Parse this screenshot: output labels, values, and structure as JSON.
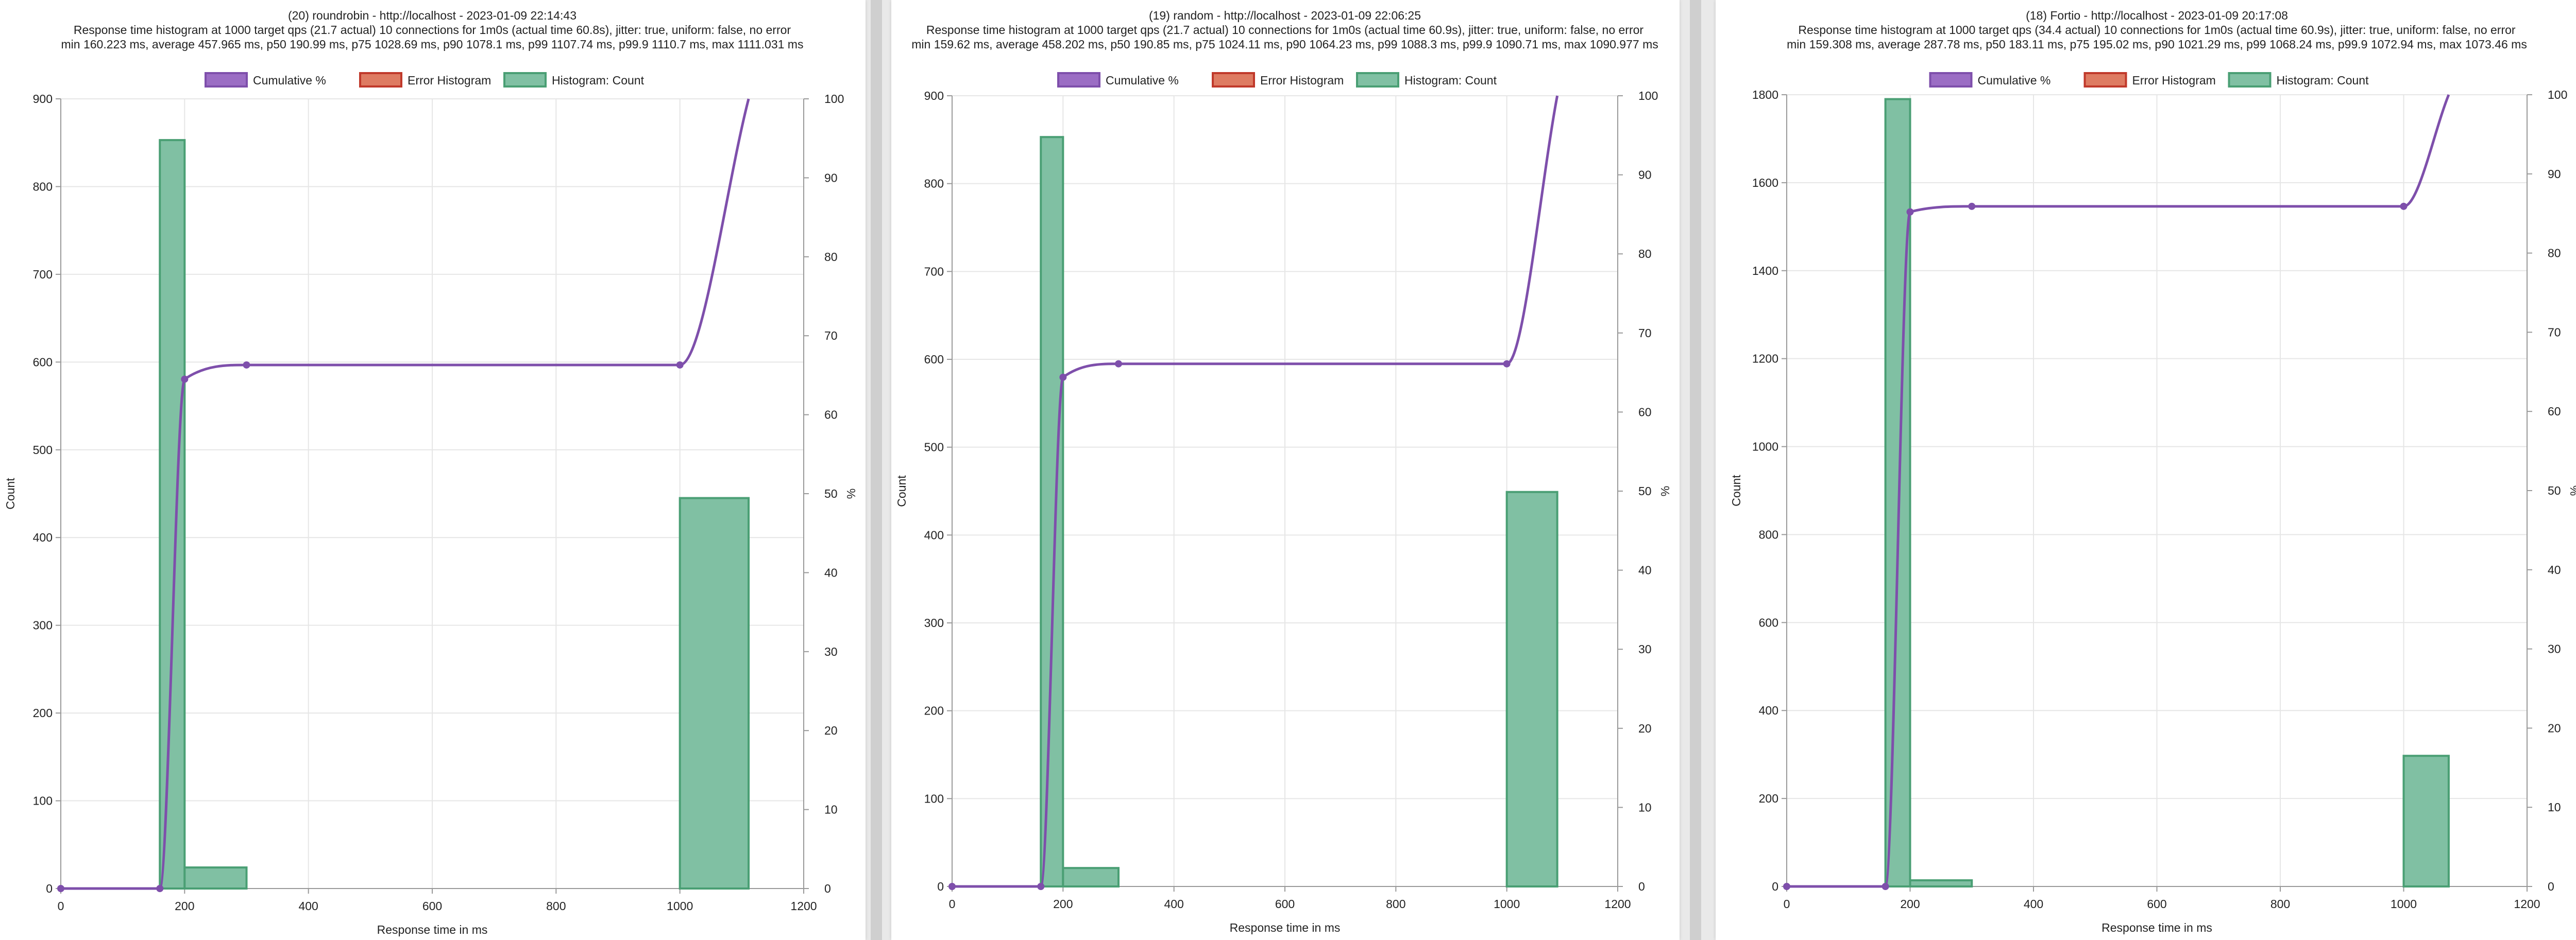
{
  "colors": {
    "cumulative": "#7e4fab",
    "cumulative_fill": "#9b6dc4",
    "error_stroke": "#c0392b",
    "error_fill": "#de7b62",
    "hist_stroke": "#4a9f74",
    "hist_fill": "#80c0a3",
    "grid": "#e6e6e6",
    "axis": "#999999",
    "text": "#222222"
  },
  "chart_data": [
    {
      "type": "bar",
      "title_lines": [
        "(20) roundrobin - http://localhost - 2023-01-09 22:14:43",
        "Response time histogram at 1000 target qps (21.7 actual) 10 connections for 1m0s (actual time 60.8s), jitter: true, uniform: false, no error",
        "min 160.223 ms, average 457.965 ms, p50 190.99 ms, p75 1028.69 ms, p90 1078.1 ms, p99 1107.74 ms, p99.9 1110.7 ms, max 1111.031 ms"
      ],
      "legend": [
        "Cumulative %",
        "Error Histogram",
        "Histogram: Count"
      ],
      "legend_position": "top",
      "xlabel": "Response time in ms",
      "ylabel_left": "Count",
      "ylabel_right": "%",
      "xlim": [
        0,
        1200
      ],
      "xticks": [
        0,
        200,
        400,
        600,
        800,
        1000,
        1200
      ],
      "ylim_left": [
        0,
        900
      ],
      "yticks_left": [
        0,
        100,
        200,
        300,
        400,
        500,
        600,
        700,
        800,
        900
      ],
      "ylim_right": [
        0,
        100
      ],
      "yticks_right": [
        0,
        10,
        20,
        30,
        40,
        50,
        60,
        70,
        80,
        90,
        100
      ],
      "grid": true,
      "histogram": [
        {
          "start": 160,
          "end": 200,
          "count": 853
        },
        {
          "start": 200,
          "end": 300,
          "count": 24
        },
        {
          "start": 300,
          "end": 1000,
          "count": 0
        },
        {
          "start": 1000,
          "end": 1111,
          "count": 445
        }
      ],
      "cumulative": [
        {
          "x": 0,
          "y": 0
        },
        {
          "x": 160,
          "y": 0
        },
        {
          "x": 200,
          "y": 64.5
        },
        {
          "x": 300,
          "y": 66.3
        },
        {
          "x": 1000,
          "y": 66.3
        },
        {
          "x": 1111,
          "y": 100
        }
      ]
    },
    {
      "type": "bar",
      "title_lines": [
        "(19) random - http://localhost - 2023-01-09 22:06:25",
        "Response time histogram at 1000 target qps (21.7 actual) 10 connections for 1m0s (actual time 60.9s), jitter: true, uniform: false, no error",
        "min 159.62 ms, average 458.202 ms, p50 190.85 ms, p75 1024.11 ms, p90 1064.23 ms, p99 1088.3 ms, p99.9 1090.71 ms, max 1090.977 ms"
      ],
      "legend": [
        "Cumulative %",
        "Error Histogram",
        "Histogram: Count"
      ],
      "legend_position": "top",
      "xlabel": "Response time in ms",
      "ylabel_left": "Count",
      "ylabel_right": "%",
      "xlim": [
        0,
        1200
      ],
      "xticks": [
        0,
        200,
        400,
        600,
        800,
        1000,
        1200
      ],
      "ylim_left": [
        0,
        900
      ],
      "yticks_left": [
        0,
        100,
        200,
        300,
        400,
        500,
        600,
        700,
        800,
        900
      ],
      "ylim_right": [
        0,
        100
      ],
      "yticks_right": [
        0,
        10,
        20,
        30,
        40,
        50,
        60,
        70,
        80,
        90,
        100
      ],
      "grid": true,
      "histogram": [
        {
          "start": 160,
          "end": 200,
          "count": 853
        },
        {
          "start": 200,
          "end": 300,
          "count": 21
        },
        {
          "start": 300,
          "end": 1000,
          "count": 0
        },
        {
          "start": 1000,
          "end": 1091,
          "count": 449
        }
      ],
      "cumulative": [
        {
          "x": 0,
          "y": 0
        },
        {
          "x": 160,
          "y": 0
        },
        {
          "x": 200,
          "y": 64.4
        },
        {
          "x": 300,
          "y": 66.1
        },
        {
          "x": 1000,
          "y": 66.1
        },
        {
          "x": 1091,
          "y": 100
        }
      ]
    },
    {
      "type": "bar",
      "title_lines": [
        "(18) Fortio - http://localhost - 2023-01-09 20:17:08",
        "Response time histogram at 1000 target qps (34.4 actual) 10 connections for 1m0s (actual time 60.9s), jitter: true, uniform: false, no error",
        "min 159.308 ms, average 287.78 ms, p50 183.11 ms, p75 195.02 ms, p90 1021.29 ms, p99 1068.24 ms, p99.9 1072.94 ms, max 1073.46 ms"
      ],
      "legend": [
        "Cumulative %",
        "Error Histogram",
        "Histogram: Count"
      ],
      "legend_position": "top",
      "xlabel": "Response time in ms",
      "ylabel_left": "Count",
      "ylabel_right": "%",
      "xlim": [
        0,
        1200
      ],
      "xticks": [
        0,
        200,
        400,
        600,
        800,
        1000,
        1200
      ],
      "ylim_left": [
        0,
        1800
      ],
      "yticks_left": [
        0,
        200,
        400,
        600,
        800,
        1000,
        1200,
        1400,
        1600,
        1800
      ],
      "ylim_right": [
        0,
        100
      ],
      "yticks_right": [
        0,
        10,
        20,
        30,
        40,
        50,
        60,
        70,
        80,
        90,
        100
      ],
      "grid": true,
      "histogram": [
        {
          "start": 160,
          "end": 200,
          "count": 1790
        },
        {
          "start": 200,
          "end": 300,
          "count": 14
        },
        {
          "start": 300,
          "end": 1000,
          "count": 0
        },
        {
          "start": 1000,
          "end": 1073,
          "count": 297
        }
      ],
      "cumulative": [
        {
          "x": 0,
          "y": 0
        },
        {
          "x": 160,
          "y": 0
        },
        {
          "x": 200,
          "y": 85.2
        },
        {
          "x": 300,
          "y": 85.9
        },
        {
          "x": 1000,
          "y": 85.9
        },
        {
          "x": 1073,
          "y": 100
        }
      ]
    }
  ]
}
